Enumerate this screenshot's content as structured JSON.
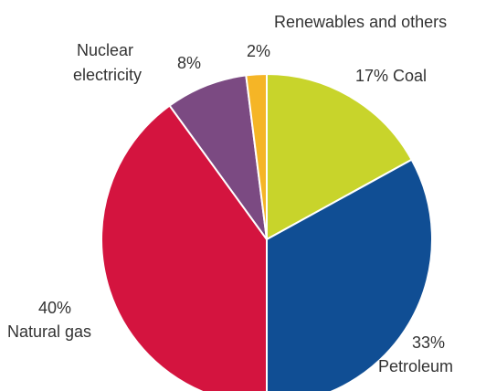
{
  "chart_data": {
    "type": "pie",
    "start": "12 o'clock",
    "direction": "clockwise",
    "slices": [
      {
        "label": "Coal",
        "value": 17,
        "value_text": "17%",
        "color": "#c8d42b"
      },
      {
        "label": "Petroleum",
        "value": 33,
        "value_text": "33%",
        "color": "#104e94"
      },
      {
        "label": "Natural gas",
        "value": 40,
        "value_text": "40%",
        "color": "#d4143f"
      },
      {
        "label": "Nuclear electricity",
        "value": 8,
        "value_text": "8%",
        "color": "#7b4a82"
      },
      {
        "label": "Renewables and others",
        "value": 2,
        "value_text": "2%",
        "color": "#f5b526"
      }
    ]
  },
  "labels": {
    "coal": "17%  Coal",
    "petroleum_value": "33%",
    "petroleum_name": "Petroleum",
    "gas_value": "40%",
    "gas_name": "Natural gas",
    "nuclear_line1": "Nuclear",
    "nuclear_line2": "electricity",
    "nuclear_value": "8%",
    "renewables_name": "Renewables and others",
    "renewables_value": "2%"
  }
}
